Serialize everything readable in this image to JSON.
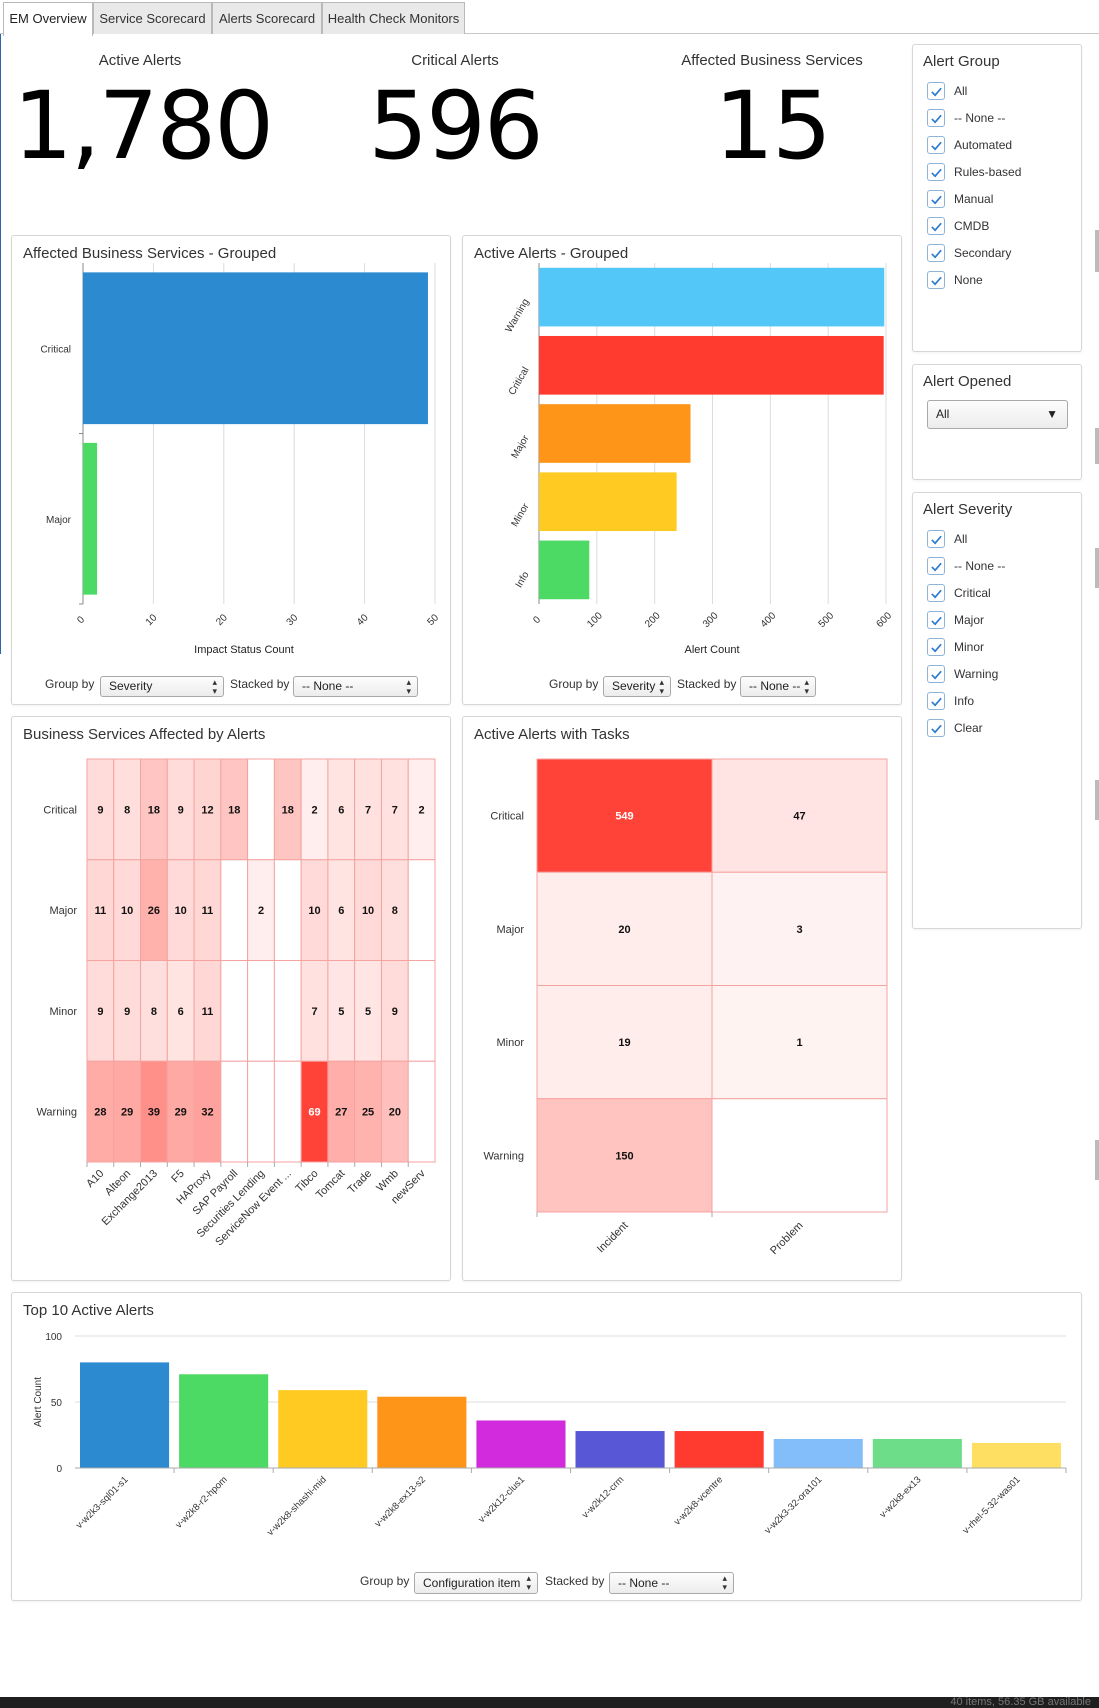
{
  "tabs": [
    "EM Overview",
    "Service Scorecard",
    "Alerts Scorecard",
    "Health Check Monitors"
  ],
  "kpis": [
    {
      "label": "Active Alerts",
      "value": "1,780"
    },
    {
      "label": "Critical Alerts",
      "value": "596"
    },
    {
      "label": "Affected Business Services",
      "value": "15"
    }
  ],
  "alert_group": {
    "title": "Alert Group",
    "items": [
      "All",
      "-- None --",
      "Automated",
      "Rules-based",
      "Manual",
      "CMDB",
      "Secondary",
      "None"
    ],
    "checked": [
      true,
      true,
      true,
      true,
      true,
      true,
      true,
      true
    ]
  },
  "alert_opened": {
    "title": "Alert Opened",
    "selected": "All"
  },
  "alert_severity": {
    "title": "Alert Severity",
    "items": [
      "All",
      "-- None --",
      "Critical",
      "Major",
      "Minor",
      "Warning",
      "Info",
      "Clear"
    ],
    "checked": [
      true,
      true,
      true,
      true,
      true,
      true,
      true,
      true
    ]
  },
  "controls": {
    "group_by_label": "Group by",
    "stacked_by_label": "Stacked by",
    "severity": "Severity",
    "none": "-- None --",
    "configuration_item": "Configuration item"
  },
  "colors": {
    "blue": "#2b8ad0",
    "green": "#4cd964",
    "warning": "#53c7f8",
    "critical": "#ff3b30",
    "major": "#ff9518",
    "minor": "#ffcb22",
    "info": "#4cd964"
  },
  "chart_data": [
    {
      "type": "bar",
      "title": "Affected Business Services - Grouped",
      "orientation": "horizontal",
      "categories": [
        "Critical",
        "Major"
      ],
      "values": [
        49,
        2
      ],
      "colors": [
        "#2b8ad0",
        "#4cd964"
      ],
      "xlabel": "Impact Status Count",
      "xlim": [
        0,
        50
      ],
      "xticks": [
        0,
        10,
        20,
        30,
        40,
        50
      ]
    },
    {
      "type": "bar",
      "title": "Active Alerts - Grouped",
      "orientation": "horizontal",
      "categories": [
        "Warning",
        "Critical",
        "Major",
        "Minor",
        "Info"
      ],
      "values": [
        597,
        596,
        262,
        238,
        87
      ],
      "colors": [
        "#53c7f8",
        "#ff3b30",
        "#ff9518",
        "#ffcb22",
        "#4cd964"
      ],
      "xlabel": "Alert Count",
      "xlim": [
        0,
        600
      ],
      "xticks": [
        0,
        100,
        200,
        300,
        400,
        500,
        600
      ]
    },
    {
      "type": "heatmap",
      "title": "Business Services Affected by Alerts",
      "rows": [
        "Critical",
        "Major",
        "Minor",
        "Warning"
      ],
      "columns": [
        "A10",
        "Alteon",
        "Exchange2013",
        "F5",
        "HAProxy",
        "SAP Payroll",
        "Securities Lending",
        "ServiceNow Event ...",
        "Tibco",
        "Tomcat",
        "Trade",
        "Wmb",
        "newServ"
      ],
      "values": [
        [
          9,
          8,
          18,
          9,
          12,
          18,
          null,
          18,
          2,
          6,
          7,
          7,
          2
        ],
        [
          11,
          10,
          26,
          10,
          11,
          null,
          2,
          null,
          10,
          6,
          10,
          8,
          null
        ],
        [
          9,
          9,
          8,
          6,
          11,
          null,
          null,
          null,
          7,
          5,
          5,
          9,
          null
        ],
        [
          28,
          29,
          39,
          29,
          32,
          null,
          null,
          null,
          69,
          27,
          25,
          20,
          null
        ]
      ]
    },
    {
      "type": "heatmap",
      "title": "Active Alerts with Tasks",
      "rows": [
        "Critical",
        "Major",
        "Minor",
        "Warning"
      ],
      "columns": [
        "Incident",
        "Problem"
      ],
      "values": [
        [
          549,
          47
        ],
        [
          20,
          3
        ],
        [
          19,
          1
        ],
        [
          150,
          null
        ]
      ]
    },
    {
      "type": "bar",
      "title": "Top 10 Active Alerts",
      "categories": [
        "v-w2k3-sql01-s1",
        "v-w2k8-r2-hpom",
        "v-w2k8-shashi-mid",
        "v-w2k8-ex13-s2",
        "v-w2k12-clus1",
        "v-w2k12-crm",
        "v-w2k8-vcentre",
        "v-w2k3-32-ora101",
        "v-w2k8-ex13",
        "v-rhel-5-32-was01"
      ],
      "values": [
        80,
        71,
        59,
        54,
        36,
        28,
        28,
        22,
        22,
        19
      ],
      "colors": [
        "#2b8ad0",
        "#4cd964",
        "#ffcb22",
        "#ff9518",
        "#d22bde",
        "#5858d6",
        "#ff3b30",
        "#83bdfa",
        "#6edd89",
        "#ffdf61"
      ],
      "ylabel": "Alert Count",
      "ylim": [
        0,
        100
      ],
      "yticks": [
        0,
        50,
        100
      ]
    }
  ],
  "status_bar": "40 items, 56.35 GB available"
}
